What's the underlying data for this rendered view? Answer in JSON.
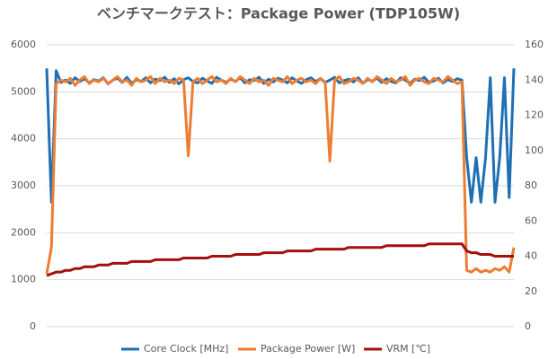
{
  "chart_data": {
    "type": "line",
    "title": "ベンチマークテスト：Package Power (TDP105W)",
    "ylim": [
      0,
      6000
    ],
    "yticks": [
      0,
      1000,
      2000,
      3000,
      4000,
      5000,
      6000
    ],
    "y2lim": [
      0,
      160
    ],
    "y2ticks": [
      0,
      20,
      40,
      60,
      80,
      100,
      120,
      140,
      160
    ],
    "grid": true,
    "legend": "bottom",
    "series": [
      {
        "name": "Core Clock [MHz]",
        "color": "#1f6fb5",
        "values": [
          5500,
          2650,
          5450,
          5200,
          5250,
          5180,
          5300,
          5220,
          5280,
          5190,
          5260,
          5230,
          5300,
          5170,
          5250,
          5290,
          5200,
          5310,
          5180,
          5260,
          5220,
          5300,
          5190,
          5270,
          5240,
          5310,
          5200,
          5280,
          5170,
          5260,
          5300,
          5220,
          5190,
          5290,
          5230,
          5180,
          5310,
          5250,
          5200,
          5270,
          5220,
          5300,
          5190,
          5260,
          5240,
          5310,
          5180,
          5270,
          5210,
          5290,
          5250,
          5190,
          5300,
          5230,
          5180,
          5260,
          5300,
          5220,
          5280,
          5200,
          5250,
          5310,
          5190,
          5240,
          5270,
          5210,
          5300,
          5180,
          5260,
          5230,
          5290,
          5200,
          5280,
          5220,
          5190,
          5300,
          5250,
          5180,
          5270,
          5240,
          5310,
          5200,
          5230,
          5290,
          5190,
          5260,
          5220,
          5280,
          5250,
          3600,
          2650,
          3600,
          2650,
          3600,
          5300,
          2650,
          3600,
          5300,
          2750,
          5500
        ]
      },
      {
        "name": "Package Power [W]",
        "color": "#ed7d31",
        "axis": "y2",
        "values": [
          30,
          45,
          138,
          140,
          139,
          141,
          137,
          140,
          142,
          138,
          140,
          139,
          141,
          138,
          140,
          142,
          139,
          140,
          137,
          141,
          139,
          140,
          142,
          138,
          141,
          139,
          140,
          138,
          141,
          140,
          97,
          139,
          141,
          138,
          140,
          142,
          139,
          140,
          138,
          141,
          139,
          142,
          140,
          138,
          141,
          139,
          140,
          137,
          141,
          140,
          139,
          142,
          138,
          140,
          141,
          139,
          140,
          138,
          141,
          139,
          94,
          140,
          142,
          138,
          139,
          141,
          140,
          138,
          141,
          139,
          142,
          140,
          138,
          141,
          139,
          140,
          142,
          137,
          140,
          141,
          139,
          138,
          141,
          140,
          139,
          142,
          140,
          138,
          139,
          32,
          31,
          33,
          31,
          32,
          31,
          33,
          32,
          34,
          31,
          45
        ]
      },
      {
        "name": "VRM [℃]",
        "color": "#a50f0f",
        "axis": "y2",
        "values": [
          29,
          30,
          31,
          31,
          32,
          32,
          33,
          33,
          34,
          34,
          34,
          35,
          35,
          35,
          36,
          36,
          36,
          36,
          37,
          37,
          37,
          37,
          37,
          38,
          38,
          38,
          38,
          38,
          38,
          39,
          39,
          39,
          39,
          39,
          39,
          40,
          40,
          40,
          40,
          40,
          41,
          41,
          41,
          41,
          41,
          41,
          42,
          42,
          42,
          42,
          42,
          43,
          43,
          43,
          43,
          43,
          43,
          44,
          44,
          44,
          44,
          44,
          44,
          44,
          45,
          45,
          45,
          45,
          45,
          45,
          45,
          45,
          46,
          46,
          46,
          46,
          46,
          46,
          46,
          46,
          46,
          47,
          47,
          47,
          47,
          47,
          47,
          47,
          47,
          43,
          42,
          42,
          41,
          41,
          41,
          40,
          40,
          40,
          40,
          40
        ]
      }
    ]
  }
}
